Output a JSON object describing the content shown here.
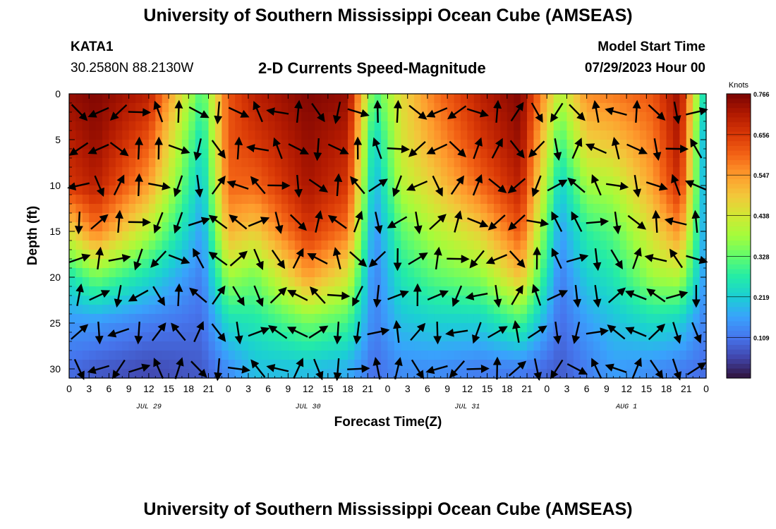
{
  "header": {
    "title": "University of Southern Mississippi Ocean Cube (AMSEAS)",
    "station": "KATA1",
    "coords": "30.2580N  88.2130W",
    "subtitle": "2-D Currents Speed-Magnitude",
    "model_label": "Model Start Time",
    "model_date": "07/29/2023 Hour 00"
  },
  "footer": {
    "title": "University of Southern Mississippi Ocean Cube (AMSEAS)"
  },
  "chart_data": {
    "type": "heatmap",
    "title": "2-D Currents Speed-Magnitude",
    "xlabel": "Forecast Time(Z)",
    "ylabel": "Depth (ft)",
    "xlim": [
      0,
      96
    ],
    "ylim": [
      0,
      31
    ],
    "x_ticks": [
      0,
      3,
      6,
      9,
      12,
      15,
      18,
      21,
      24,
      27,
      30,
      33,
      36,
      39,
      42,
      45,
      48,
      51,
      54,
      57,
      60,
      63,
      66,
      69,
      72,
      75,
      78,
      81,
      84,
      87,
      90,
      93,
      96
    ],
    "x_tick_labels": [
      "0",
      "3",
      "6",
      "9",
      "12",
      "15",
      "18",
      "21",
      "0",
      "3",
      "6",
      "9",
      "12",
      "15",
      "18",
      "21",
      "0",
      "3",
      "6",
      "9",
      "12",
      "15",
      "18",
      "21",
      "0",
      "3",
      "6",
      "9",
      "12",
      "15",
      "18",
      "21",
      "0"
    ],
    "y_ticks": [
      0,
      5,
      10,
      15,
      20,
      25,
      30
    ],
    "y_tick_labels": [
      "0",
      "5",
      "10",
      "15",
      "20",
      "25",
      "30"
    ],
    "day_labels": [
      {
        "hour": 12,
        "label": "JUL 29"
      },
      {
        "hour": 36,
        "label": "JUL 30"
      },
      {
        "hour": 60,
        "label": "JUL 31"
      },
      {
        "hour": 84,
        "label": "AUG 1"
      }
    ],
    "colorbar": {
      "title": "Knots",
      "min": 0,
      "max": 0.766,
      "ticks": [
        "0.766",
        "0.656",
        "0.547",
        "0.438",
        "0.328",
        "0.219",
        "0.109"
      ],
      "tick_values": [
        0.766,
        0.656,
        0.547,
        0.438,
        0.328,
        0.219,
        0.109
      ],
      "colors": [
        "#30123b",
        "#4145ab",
        "#4675ed",
        "#39a2fc",
        "#1bcfd4",
        "#24eca6",
        "#61fc6c",
        "#a4fc3b",
        "#d1e834",
        "#f3c63a",
        "#fe9b2d",
        "#f36315",
        "#d93806",
        "#b11901",
        "#7a0402"
      ]
    },
    "depth_profile_ft": [
      0,
      5,
      10,
      15,
      20,
      25,
      30
    ],
    "speed_profile_knots": [
      [
        0.74,
        0.7,
        0.66,
        0.46,
        0.25,
        0.15,
        0.1
      ],
      [
        0.76,
        0.74,
        0.7,
        0.58,
        0.34,
        0.15,
        0.08
      ],
      [
        0.7,
        0.62,
        0.54,
        0.4,
        0.24,
        0.12,
        0.06
      ],
      [
        0.3,
        0.24,
        0.2,
        0.16,
        0.12,
        0.1,
        0.08
      ],
      [
        0.62,
        0.62,
        0.6,
        0.52,
        0.38,
        0.24,
        0.14
      ],
      [
        0.7,
        0.66,
        0.6,
        0.48,
        0.34,
        0.26,
        0.2
      ],
      [
        0.76,
        0.74,
        0.72,
        0.66,
        0.54,
        0.34,
        0.2
      ],
      [
        0.74,
        0.7,
        0.66,
        0.58,
        0.44,
        0.3,
        0.18
      ],
      [
        0.3,
        0.22,
        0.18,
        0.14,
        0.12,
        0.12,
        0.1
      ],
      [
        0.46,
        0.44,
        0.4,
        0.32,
        0.26,
        0.2,
        0.14
      ],
      [
        0.58,
        0.54,
        0.48,
        0.4,
        0.32,
        0.22,
        0.14
      ],
      [
        0.7,
        0.66,
        0.6,
        0.48,
        0.36,
        0.22,
        0.12
      ],
      [
        0.76,
        0.74,
        0.7,
        0.62,
        0.5,
        0.3,
        0.12
      ],
      [
        0.4,
        0.3,
        0.22,
        0.16,
        0.12,
        0.1,
        0.08
      ],
      [
        0.56,
        0.48,
        0.38,
        0.28,
        0.22,
        0.16,
        0.12
      ],
      [
        0.58,
        0.5,
        0.4,
        0.32,
        0.26,
        0.2,
        0.16
      ],
      [
        0.62,
        0.58,
        0.54,
        0.46,
        0.38,
        0.24,
        0.14
      ],
      [
        0.74,
        0.72,
        0.68,
        0.56,
        0.4,
        0.22,
        0.12
      ],
      [
        0.2,
        0.14,
        0.14,
        0.14,
        0.14,
        0.12,
        0.1
      ]
    ],
    "speed_profile_hours": [
      0,
      4,
      12,
      20,
      24,
      28,
      36,
      42,
      46,
      50,
      55,
      62,
      68,
      74,
      78,
      82,
      88,
      92,
      96
    ],
    "vectors_note": "Arrows indicate current direction"
  }
}
